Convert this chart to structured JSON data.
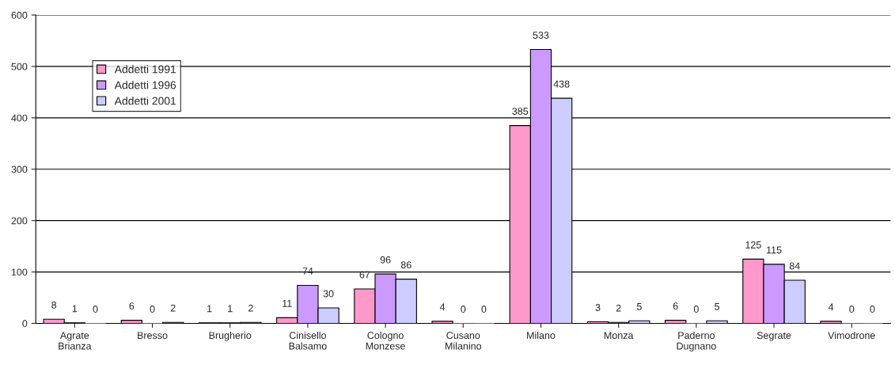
{
  "chart_data": {
    "type": "bar",
    "categories": [
      "Agrate Brianza",
      "Bresso",
      "Brugherio",
      "Cinisello Balsamo",
      "Cologno Monzese",
      "Cusano Milanino",
      "Milano",
      "Monza",
      "Paderno Dugnano",
      "Segrate",
      "Vimodrone"
    ],
    "series": [
      {
        "name": "Addetti 1991",
        "color": "#ff99cc",
        "values": [
          8,
          6,
          1,
          11,
          67,
          4,
          385,
          3,
          6,
          125,
          4
        ]
      },
      {
        "name": "Addetti 1996",
        "color": "#cc99ff",
        "values": [
          1,
          0,
          1,
          74,
          96,
          0,
          533,
          2,
          0,
          115,
          0
        ]
      },
      {
        "name": "Addetti 2001",
        "color": "#ccccff",
        "values": [
          0,
          2,
          2,
          30,
          86,
          0,
          438,
          5,
          5,
          84,
          0
        ]
      }
    ],
    "ylim": [
      0,
      600
    ],
    "yticks": [
      0,
      100,
      200,
      300,
      400,
      500,
      600
    ],
    "grid": "y",
    "legend": "top left",
    "data_labels": true
  }
}
